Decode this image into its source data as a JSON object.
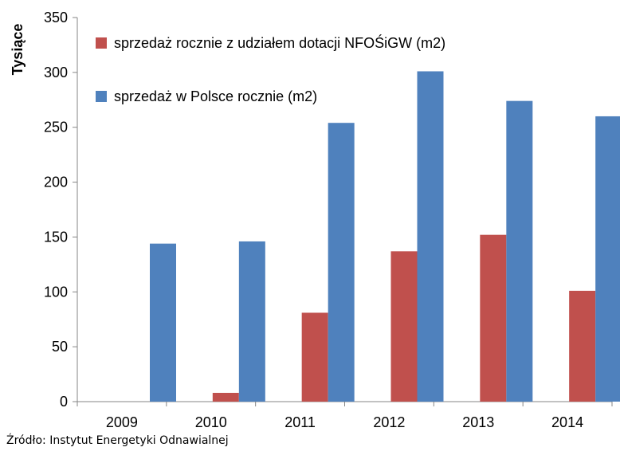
{
  "chart_data": {
    "type": "bar",
    "title": "",
    "xlabel": "",
    "ylabel": "Tysiące",
    "categories": [
      "2009",
      "2010",
      "2011",
      "2012",
      "2013",
      "2014"
    ],
    "series": [
      {
        "name": "sprzedaż rocznie z udziałem dotacji NFOŚiGW (m2)",
        "values": [
          0,
          8,
          81,
          137,
          152,
          101
        ],
        "color": "#C0504D"
      },
      {
        "name": "sprzedaż w Polsce rocznie (m2)",
        "values": [
          144,
          146,
          254,
          301,
          274,
          260
        ],
        "color": "#4F81BD"
      }
    ],
    "ylim": [
      0,
      350
    ],
    "yticks": [
      0,
      50,
      100,
      150,
      200,
      250,
      300,
      350
    ],
    "grid": false,
    "legend_position": "top-left, inside plot"
  },
  "source_note": "Źródło: Instytut Energetyki Odnawialnej"
}
